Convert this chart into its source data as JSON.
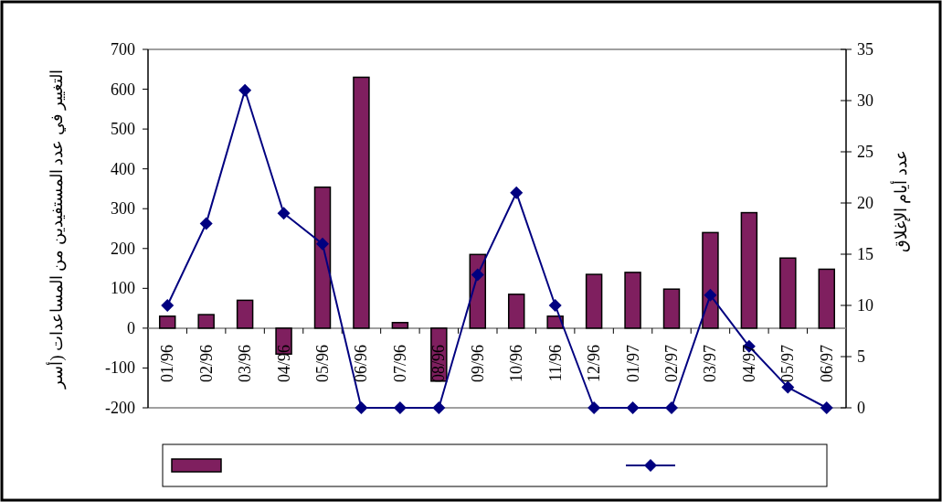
{
  "chart_data": {
    "type": "bar",
    "ylabel": "التغيير في عدد المستفيدين من المساعدات (أسر",
    "y2label": "عدد أيام الإغلاق",
    "categories": [
      "01/96",
      "02/96",
      "03/96",
      "04/96",
      "05/96",
      "06/96",
      "07/96",
      "08/96",
      "09/96",
      "10/96",
      "11/96",
      "12/96",
      "01/97",
      "02/97",
      "03/97",
      "04/97",
      "05/97",
      "06/97"
    ],
    "series": [
      {
        "color": "#7f1f5f",
        "values": [
          30,
          34,
          70,
          -65,
          354,
          630,
          14,
          -133,
          185,
          85,
          30,
          135,
          140,
          98,
          240,
          290,
          176,
          148
        ]
      },
      {
        "type": "line",
        "axis": "y2",
        "color": "#000080",
        "marker": "diamond",
        "line_style": "solid",
        "values": [
          10,
          18,
          31,
          19,
          16,
          0,
          0,
          0,
          13,
          21,
          10,
          0,
          0,
          0,
          11,
          6,
          2,
          0
        ]
      }
    ],
    "ylim": [
      -200,
      700
    ],
    "yticks": [
      -200,
      -100,
      0,
      100,
      200,
      300,
      400,
      500,
      600,
      700
    ],
    "y2lim": [
      0,
      35
    ],
    "y2ticks": [
      0,
      5,
      10,
      15,
      20,
      25,
      30,
      35
    ],
    "grid": false
  }
}
